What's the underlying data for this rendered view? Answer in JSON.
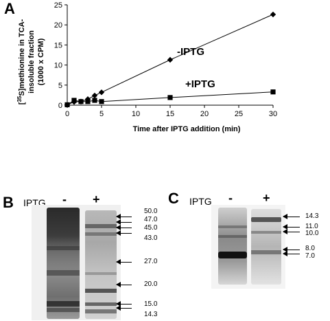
{
  "panels": {
    "a": "A",
    "b": "B",
    "c": "C"
  },
  "chart_data": {
    "type": "scatter",
    "xlabel": "Time after IPTG addition (min)",
    "ylabel_lines": [
      "[35S]methionine in TCA-",
      "insoluble fraction",
      "(1000 x CPM)"
    ],
    "xlim": [
      0,
      30
    ],
    "ylim": [
      0,
      25
    ],
    "xticks": [
      0,
      5,
      10,
      15,
      20,
      25,
      30
    ],
    "yticks": [
      0,
      5,
      10,
      15,
      20,
      25
    ],
    "grid": false,
    "series": [
      {
        "name": "-IPTG",
        "marker": "diamond",
        "x": [
          0,
          1,
          2,
          3,
          4,
          5,
          15,
          30
        ],
        "y": [
          0.1,
          0.8,
          0.9,
          1.5,
          2.4,
          3.2,
          11.3,
          22.6
        ]
      },
      {
        "name": "+IPTG",
        "marker": "square",
        "x": [
          0,
          1,
          2,
          3,
          4,
          5,
          15,
          30
        ],
        "y": [
          0.1,
          1.2,
          0.9,
          0.9,
          1.2,
          0.9,
          1.9,
          3.3
        ]
      }
    ]
  },
  "gel_b": {
    "iptg_label": "IPTG",
    "lane_minus": "-",
    "lane_plus": "+",
    "markers": [
      "50.0",
      "47.0",
      "45.0",
      "43.0",
      "27.0",
      "20.0",
      "15.0",
      "14.3"
    ]
  },
  "gel_c": {
    "iptg_label": "IPTG",
    "lane_minus": "-",
    "lane_plus": "+",
    "markers": [
      "14.3",
      "11.0",
      "10.0",
      "8.0",
      "7.0"
    ]
  }
}
